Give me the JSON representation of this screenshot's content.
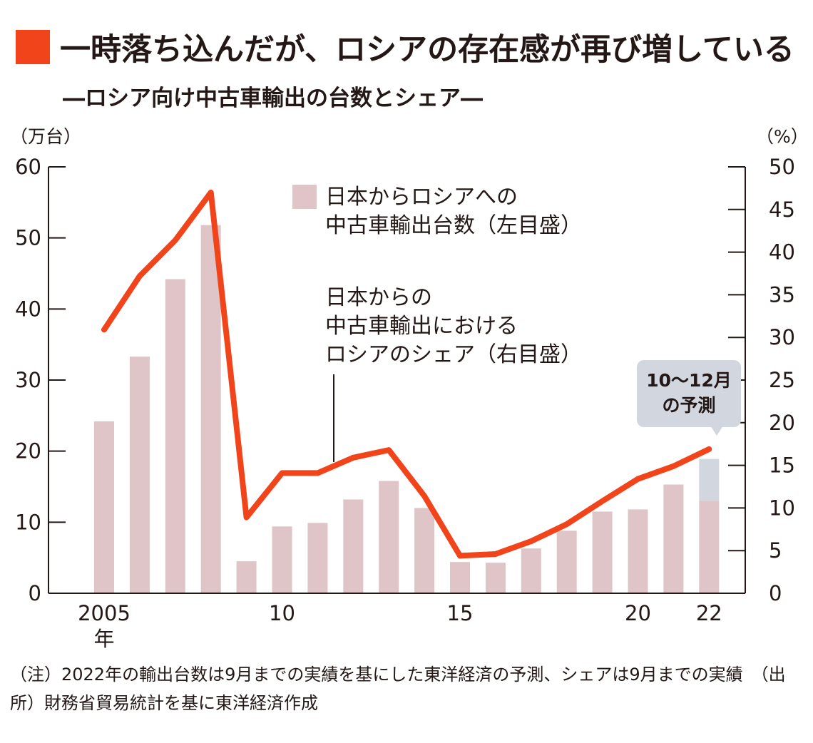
{
  "title": "一時落ち込んだが、ロシアの存在感が再び増している",
  "subtitle": "―ロシア向け中古車輸出の台数とシェア―",
  "colors": {
    "accent": "#f1441b",
    "bar": "#dfc5c7",
    "forecast": "#d2d6de",
    "text": "#231815"
  },
  "chart_data": {
    "type": "bar+line",
    "left_axis": {
      "unit": "（万台）",
      "min": 0,
      "max": 60,
      "ticks": [
        0,
        10,
        20,
        30,
        40,
        50,
        60
      ]
    },
    "right_axis": {
      "unit": "（%）",
      "min": 0,
      "max": 50,
      "ticks": [
        0,
        5,
        10,
        15,
        20,
        25,
        30,
        35,
        40,
        45,
        50
      ]
    },
    "x_labels": [
      {
        "year": 2005,
        "text": "2005"
      },
      {
        "year": 2010,
        "text": "10"
      },
      {
        "year": 2015,
        "text": "15"
      },
      {
        "year": 2020,
        "text": "20"
      },
      {
        "year": 2022,
        "text": "22"
      }
    ],
    "x_suffix": "年",
    "years": [
      2005,
      2006,
      2007,
      2008,
      2009,
      2010,
      2011,
      2012,
      2013,
      2014,
      2015,
      2016,
      2017,
      2018,
      2019,
      2020,
      2021,
      2022
    ],
    "series": [
      {
        "name": "日本からロシアへの中古車輸出台数（左目盛）",
        "axis": "left",
        "values": [
          24.2,
          33.3,
          44.2,
          51.8,
          4.5,
          9.4,
          9.9,
          13.2,
          15.8,
          12.0,
          4.4,
          4.3,
          6.3,
          8.8,
          11.5,
          11.8,
          15.3,
          13.0
        ],
        "forecast_2022_oct_dec": 5.9
      },
      {
        "name": "日本からの中古車輸出におけるロシアのシェア（右目盛）",
        "axis": "right",
        "values": [
          30.9,
          37.2,
          41.4,
          47.0,
          8.9,
          14.1,
          14.1,
          15.9,
          16.8,
          11.4,
          4.4,
          4.6,
          6.1,
          8.1,
          10.8,
          13.4,
          14.9,
          16.9
        ]
      }
    ],
    "legend": {
      "bar": [
        "日本からロシアへの",
        "中古車輸出台数（左目盛）"
      ],
      "line": [
        "日本からの",
        "中古車輸出におけるロシアのシェア（右目盛）"
      ]
    },
    "callout": [
      "10〜12月",
      "の予測"
    ]
  },
  "note": "（注）2022年の輸出台数は9月までの実績を基にした東洋経済の予測、シェアは9月までの実績　（出所）財務省貿易統計を基に東洋経済作成"
}
